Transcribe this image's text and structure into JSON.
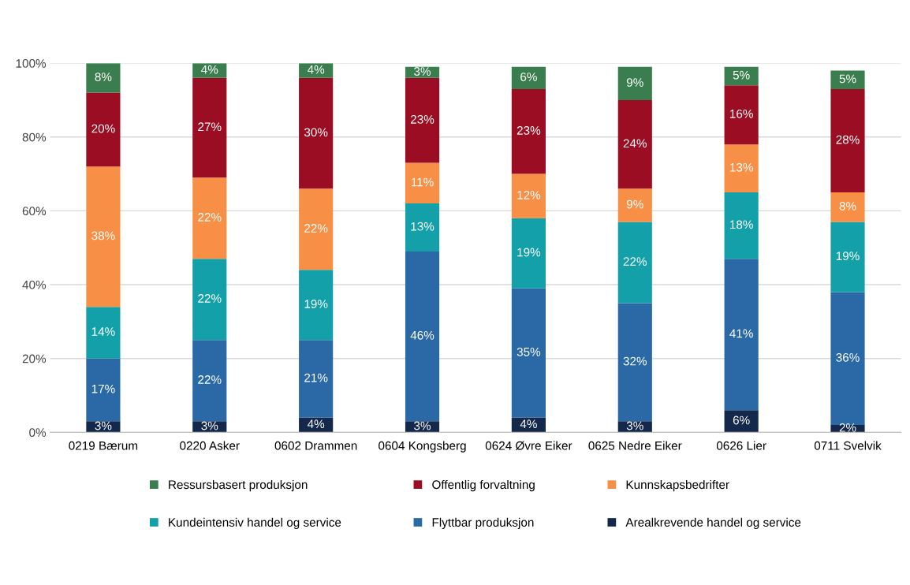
{
  "chart_data": {
    "type": "bar",
    "stacked": true,
    "grid": "y",
    "legend": "bottom",
    "categories": [
      "0219 Bærum",
      "0220 Asker",
      "0602 Drammen",
      "0604 Kongsberg",
      "0624 Øvre Eiker",
      "0625 Nedre Eiker",
      "0626 Lier",
      "0711 Svelvik"
    ],
    "ylim": [
      0,
      100
    ],
    "yticks": [
      {
        "value": 0,
        "label": "0%"
      },
      {
        "value": 20,
        "label": "20%"
      },
      {
        "value": 40,
        "label": "40%"
      },
      {
        "value": 60,
        "label": "60%"
      },
      {
        "value": 80,
        "label": "80%"
      },
      {
        "value": 100,
        "label": "100%"
      }
    ],
    "series": [
      {
        "name": "Arealkrevende handel og service",
        "color": "#14284b",
        "values": [
          3,
          3,
          4,
          3,
          4,
          3,
          6,
          2
        ],
        "value_labels": [
          "3%",
          "3%",
          "4%",
          "3%",
          "4%",
          "3%",
          "6%",
          "2%"
        ]
      },
      {
        "name": "Flyttbar produksjon",
        "color": "#2b68a6",
        "values": [
          17,
          22,
          21,
          46,
          35,
          32,
          41,
          36
        ],
        "value_labels": [
          "17%",
          "22%",
          "21%",
          "46%",
          "35%",
          "32%",
          "41%",
          "36%"
        ]
      },
      {
        "name": "Kundeintensiv handel og service",
        "color": "#14a0a8",
        "values": [
          14,
          22,
          19,
          13,
          19,
          22,
          18,
          19
        ],
        "value_labels": [
          "14%",
          "22%",
          "19%",
          "13%",
          "19%",
          "22%",
          "18%",
          "19%"
        ]
      },
      {
        "name": "Kunnskapsbedrifter",
        "color": "#f79046",
        "values": [
          38,
          22,
          22,
          11,
          12,
          9,
          13,
          8
        ],
        "value_labels": [
          "38%",
          "22%",
          "22%",
          "11%",
          "12%",
          "9%",
          "13%",
          "8%"
        ]
      },
      {
        "name": "Offentlig forvaltning",
        "color": "#9b0d22",
        "values": [
          20,
          27,
          30,
          23,
          23,
          24,
          16,
          28
        ],
        "value_labels": [
          "20%",
          "27%",
          "30%",
          "23%",
          "23%",
          "24%",
          "16%",
          "28%"
        ]
      },
      {
        "name": "Ressursbasert produksjon",
        "color": "#3a7d4e",
        "values": [
          8,
          4,
          4,
          3,
          6,
          9,
          5,
          5
        ],
        "value_labels": [
          "8%",
          "4%",
          "4%",
          "3%",
          "6%",
          "9%",
          "5%",
          "5%"
        ]
      }
    ]
  }
}
